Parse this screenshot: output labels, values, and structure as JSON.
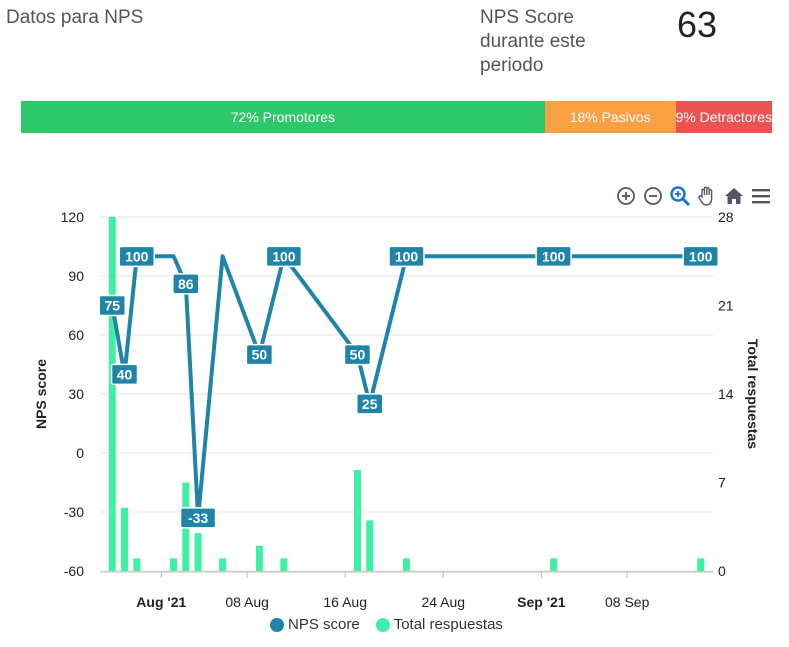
{
  "header": {
    "title": "Datos para NPS",
    "score_label": "NPS Score durante este periodo",
    "score_value": "63"
  },
  "distribution": {
    "promotores": "72% Promotores",
    "pasivos": "18% Pasivos",
    "detractores": "9% Detractores",
    "colors": {
      "promotores": "#2ec76a",
      "pasivos": "#f8a044",
      "detractores": "#e95353"
    }
  },
  "toolbar": {
    "icons": [
      "zoom-in-icon",
      "zoom-out-icon",
      "zoom-select-icon",
      "pan-hand-icon",
      "home-icon",
      "menu-icon"
    ]
  },
  "chart_data": {
    "type": "line",
    "ylabel": "NPS score",
    "y2label": "Total respuestas",
    "ylim": [
      -60,
      120
    ],
    "y2lim": [
      0,
      28
    ],
    "yticks": [
      "120",
      "90",
      "60",
      "30",
      "0",
      "-30",
      "-60"
    ],
    "y2ticks": [
      "28",
      "21",
      "14",
      "7",
      "0"
    ],
    "xlim": [
      "2021-07-27",
      "2021-09-15"
    ],
    "xticks": [
      {
        "date": "2021-08-01",
        "label": "Aug '21",
        "bold": true
      },
      {
        "date": "2021-08-08",
        "label": "08 Aug",
        "bold": false
      },
      {
        "date": "2021-08-16",
        "label": "16 Aug",
        "bold": false
      },
      {
        "date": "2021-08-24",
        "label": "24 Aug",
        "bold": false
      },
      {
        "date": "2021-09-01",
        "label": "Sep '21",
        "bold": true
      },
      {
        "date": "2021-09-08",
        "label": "08 Sep",
        "bold": false
      }
    ],
    "series": [
      {
        "name": "NPS score",
        "color": "#1f84a8",
        "points": [
          {
            "x": "2021-07-28",
            "y": 75,
            "label": "75"
          },
          {
            "x": "2021-07-29",
            "y": 40,
            "label": "40"
          },
          {
            "x": "2021-07-30",
            "y": 100,
            "label": "100"
          },
          {
            "x": "2021-08-02",
            "y": 100,
            "label": ""
          },
          {
            "x": "2021-08-03",
            "y": 86,
            "label": "86"
          },
          {
            "x": "2021-08-04",
            "y": -33,
            "label": "-33"
          },
          {
            "x": "2021-08-06",
            "y": 100,
            "label": ""
          },
          {
            "x": "2021-08-09",
            "y": 50,
            "label": "50"
          },
          {
            "x": "2021-08-11",
            "y": 100,
            "label": "100"
          },
          {
            "x": "2021-08-17",
            "y": 50,
            "label": "50"
          },
          {
            "x": "2021-08-18",
            "y": 25,
            "label": "25"
          },
          {
            "x": "2021-08-21",
            "y": 100,
            "label": "100"
          },
          {
            "x": "2021-09-02",
            "y": 100,
            "label": "100"
          },
          {
            "x": "2021-09-14",
            "y": 100,
            "label": "100"
          }
        ]
      },
      {
        "name": "Total respuestas",
        "color": "#3ef0a4",
        "points": [
          {
            "x": "2021-07-28",
            "y": 28
          },
          {
            "x": "2021-07-29",
            "y": 5
          },
          {
            "x": "2021-07-30",
            "y": 1
          },
          {
            "x": "2021-08-02",
            "y": 1
          },
          {
            "x": "2021-08-03",
            "y": 7
          },
          {
            "x": "2021-08-04",
            "y": 3
          },
          {
            "x": "2021-08-06",
            "y": 1
          },
          {
            "x": "2021-08-09",
            "y": 2
          },
          {
            "x": "2021-08-11",
            "y": 1
          },
          {
            "x": "2021-08-17",
            "y": 8
          },
          {
            "x": "2021-08-18",
            "y": 4
          },
          {
            "x": "2021-08-21",
            "y": 1
          },
          {
            "x": "2021-09-02",
            "y": 1
          },
          {
            "x": "2021-09-14",
            "y": 1
          }
        ]
      }
    ]
  }
}
